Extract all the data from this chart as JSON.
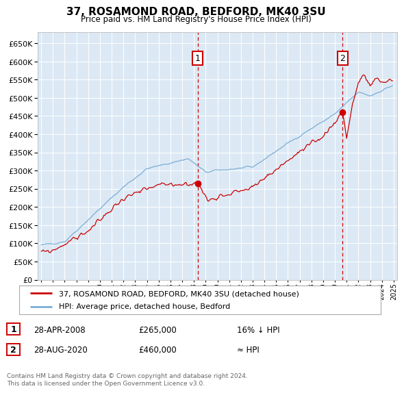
{
  "title": "37, ROSAMOND ROAD, BEDFORD, MK40 3SU",
  "subtitle": "Price paid vs. HM Land Registry's House Price Index (HPI)",
  "legend_line1": "37, ROSAMOND ROAD, BEDFORD, MK40 3SU (detached house)",
  "legend_line2": "HPI: Average price, detached house, Bedford",
  "annotation1_label": "1",
  "annotation1_date": "28-APR-2008",
  "annotation1_price": "£265,000",
  "annotation1_note": "16% ↓ HPI",
  "annotation2_label": "2",
  "annotation2_date": "28-AUG-2020",
  "annotation2_price": "£460,000",
  "annotation2_note": "≈ HPI",
  "footer": "Contains HM Land Registry data © Crown copyright and database right 2024.\nThis data is licensed under the Open Government Licence v3.0.",
  "ylim": [
    0,
    680000
  ],
  "yticks": [
    0,
    50000,
    100000,
    150000,
    200000,
    250000,
    300000,
    350000,
    400000,
    450000,
    500000,
    550000,
    600000,
    650000
  ],
  "xlim_left": 1994.7,
  "xlim_right": 2025.3,
  "plot_bg": "#dce9f5",
  "red_color": "#cc0000",
  "blue_color": "#7aadd4",
  "vline_color": "#cc0000",
  "grid_color": "#ffffff",
  "annotation_box_color": "#cc0000",
  "sale1_x": 2008.33,
  "sale1_y": 265000,
  "sale2_x": 2020.66,
  "sale2_y": 460000
}
